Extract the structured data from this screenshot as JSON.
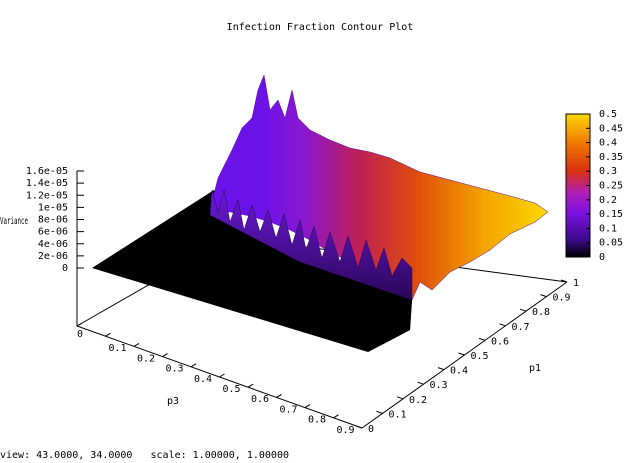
{
  "chart_data": {
    "type": "surface",
    "title": "Infection Fraction Contour Plot",
    "xlabel": "p3",
    "ylabel": "p1",
    "zlabel": "Variance",
    "xlim": [
      0,
      1
    ],
    "ylim": [
      0,
      1
    ],
    "zlim": [
      0,
      1.6e-05
    ],
    "x_ticks": [
      "0",
      "0.1",
      "0.2",
      "0.3",
      "0.4",
      "0.5",
      "0.6",
      "0.7",
      "0.8",
      "0.9"
    ],
    "y_ticks": [
      "0",
      "0.1",
      "0.2",
      "0.3",
      "0.4",
      "0.5",
      "0.6",
      "0.7",
      "0.8",
      "0.9",
      "1"
    ],
    "z_ticks": [
      "1.6e-05",
      "1.4e-05",
      "1.2e-05",
      "1e-05",
      "8e-06",
      "6e-06",
      "4e-06",
      "2e-06",
      "0"
    ],
    "colorbar": {
      "range": [
        0,
        0.5
      ],
      "ticks": [
        "0.5",
        "0.45",
        "0.4",
        "0.35",
        "0.3",
        "0.25",
        "0.2",
        "0.15",
        "0.1",
        "0.05",
        "0"
      ],
      "colors": [
        "#000000",
        "#3a0a8a",
        "#7a10e0",
        "#b020b8",
        "#d83010",
        "#f07a00",
        "#fbd800"
      ]
    },
    "description_values": {
      "variance_peak_approx": 1.4e-05,
      "variance_floor": 0
    }
  },
  "status": {
    "view_text": "view: 43.0000, 34.0000   scale: 1.00000, 1.00000"
  }
}
